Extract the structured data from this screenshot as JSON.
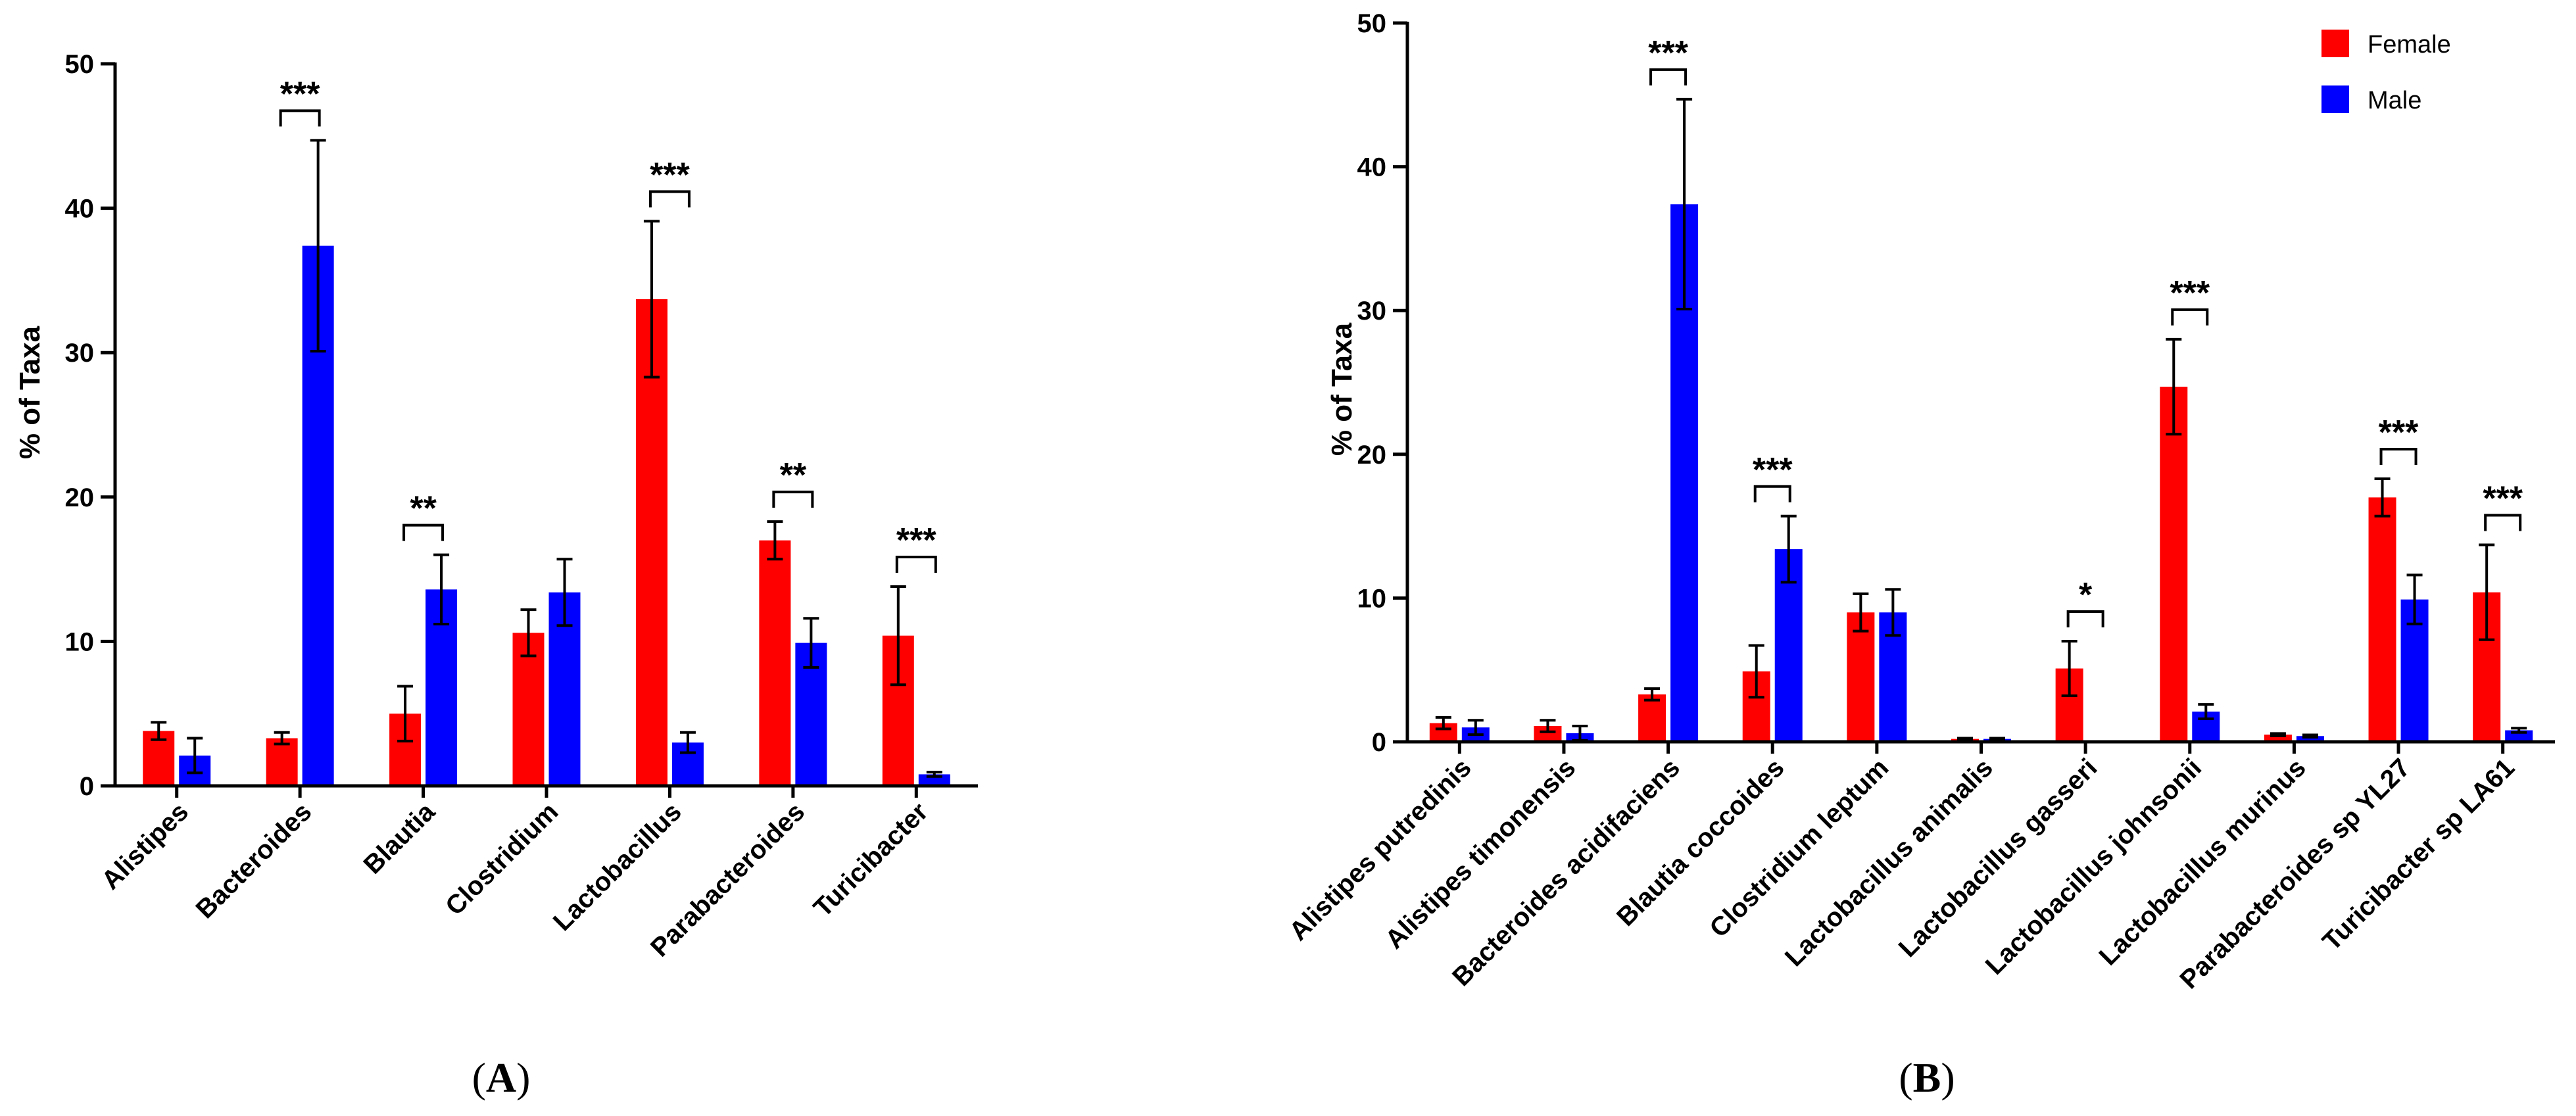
{
  "chart_data": [
    {
      "type": "bar",
      "panel_label": [
        "(",
        "A",
        ")"
      ],
      "ylabel": "% of Taxa",
      "ylim": [
        0,
        50
      ],
      "yticks": [
        0,
        10,
        20,
        30,
        40,
        50
      ],
      "categories": [
        "Alistipes",
        "Bacteroides",
        "Blautia",
        "Clostridium",
        "Lactobacillus",
        "Parabacteroides",
        "Turicibacter"
      ],
      "series": [
        {
          "name": "Female",
          "color": "#ff0000",
          "values": [
            3.8,
            3.3,
            5.0,
            10.6,
            33.7,
            17.0,
            10.4
          ],
          "errors": [
            0.6,
            0.4,
            1.9,
            1.6,
            5.4,
            1.3,
            3.4
          ]
        },
        {
          "name": "Male",
          "color": "#0000ff",
          "values": [
            2.1,
            37.4,
            13.6,
            13.4,
            3.0,
            9.9,
            0.8
          ],
          "errors": [
            1.2,
            7.3,
            2.4,
            2.3,
            0.7,
            1.7,
            0.15
          ]
        }
      ],
      "significance": [
        {
          "category": 1,
          "label": "***"
        },
        {
          "category": 2,
          "label": "**"
        },
        {
          "category": 4,
          "label": "***"
        },
        {
          "category": 5,
          "label": "**"
        },
        {
          "category": 6,
          "label": "***"
        }
      ]
    },
    {
      "type": "bar",
      "panel_label": [
        "(",
        "B",
        ")"
      ],
      "ylabel": "% of Taxa",
      "ylim": [
        0,
        50
      ],
      "yticks": [
        0,
        10,
        20,
        30,
        40,
        50
      ],
      "categories": [
        "Alistipes putredinis",
        "Alistipes timonensis",
        "Bacteroides acidifaciens",
        "Blautia coccoides",
        "Clostridium leptum",
        "Lactobacillus animalis",
        "Lactobacillus gasseri",
        "Lactobacillus johnsonii",
        "Lactobacillus murinus",
        "Parabacteroides sp YL27",
        "Turicibacter sp LA61"
      ],
      "series": [
        {
          "name": "Female",
          "color": "#ff0000",
          "values": [
            1.3,
            1.1,
            3.3,
            4.9,
            9.0,
            0.2,
            5.1,
            24.7,
            0.5,
            17.0,
            10.4
          ],
          "errors": [
            0.4,
            0.4,
            0.4,
            1.8,
            1.3,
            0.05,
            1.9,
            3.3,
            0.08,
            1.3,
            3.3
          ]
        },
        {
          "name": "Male",
          "color": "#0000ff",
          "values": [
            1.0,
            0.6,
            37.4,
            13.4,
            9.0,
            0.2,
            0.0,
            2.1,
            0.4,
            9.9,
            0.8
          ],
          "errors": [
            0.5,
            0.5,
            7.3,
            2.3,
            1.6,
            0.05,
            0.0,
            0.5,
            0.08,
            1.7,
            0.15
          ]
        }
      ],
      "significance": [
        {
          "category": 2,
          "label": "***"
        },
        {
          "category": 3,
          "label": "***"
        },
        {
          "category": 6,
          "label": "*"
        },
        {
          "category": 7,
          "label": "***"
        },
        {
          "category": 9,
          "label": "***"
        },
        {
          "category": 10,
          "label": "***"
        }
      ],
      "legend": [
        {
          "label": "Female",
          "color": "#ff0000"
        },
        {
          "label": "Male",
          "color": "#0000ff"
        }
      ]
    }
  ]
}
